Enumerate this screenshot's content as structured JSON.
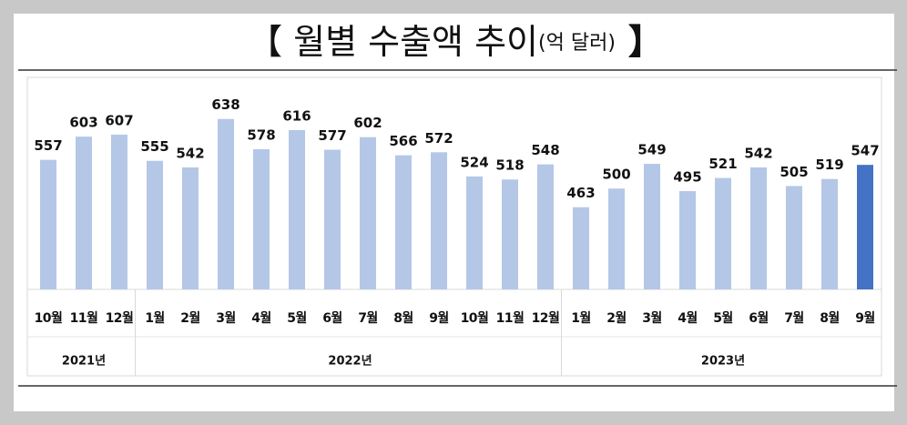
{
  "chart_data": {
    "type": "bar",
    "title": "【 월별 수출액 추이",
    "title_unit": "(억 달러)",
    "title_close": "】",
    "groups": [
      {
        "name": "2021년",
        "categories": [
          "10월",
          "11월",
          "12월"
        ]
      },
      {
        "name": "2022년",
        "categories": [
          "1월",
          "2월",
          "3월",
          "4월",
          "5월",
          "6월",
          "7월",
          "8월",
          "9월",
          "10월",
          "11월",
          "12월"
        ]
      },
      {
        "name": "2023년",
        "categories": [
          "1월",
          "2월",
          "3월",
          "4월",
          "5월",
          "6월",
          "7월",
          "8월",
          "9월"
        ]
      }
    ],
    "values": [
      557,
      603,
      607,
      555,
      542,
      638,
      578,
      616,
      577,
      602,
      566,
      572,
      524,
      518,
      548,
      463,
      500,
      549,
      495,
      521,
      542,
      505,
      519,
      547
    ],
    "colors": [
      "#b4c7e7",
      "#b4c7e7",
      "#b4c7e7",
      "#b4c7e7",
      "#b4c7e7",
      "#b4c7e7",
      "#b4c7e7",
      "#b4c7e7",
      "#b4c7e7",
      "#b4c7e7",
      "#b4c7e7",
      "#b4c7e7",
      "#b4c7e7",
      "#b4c7e7",
      "#b4c7e7",
      "#b4c7e7",
      "#b4c7e7",
      "#b4c7e7",
      "#b4c7e7",
      "#b4c7e7",
      "#b4c7e7",
      "#b4c7e7",
      "#b4c7e7",
      "#4472c4"
    ],
    "ylim": [
      300,
      700
    ]
  }
}
